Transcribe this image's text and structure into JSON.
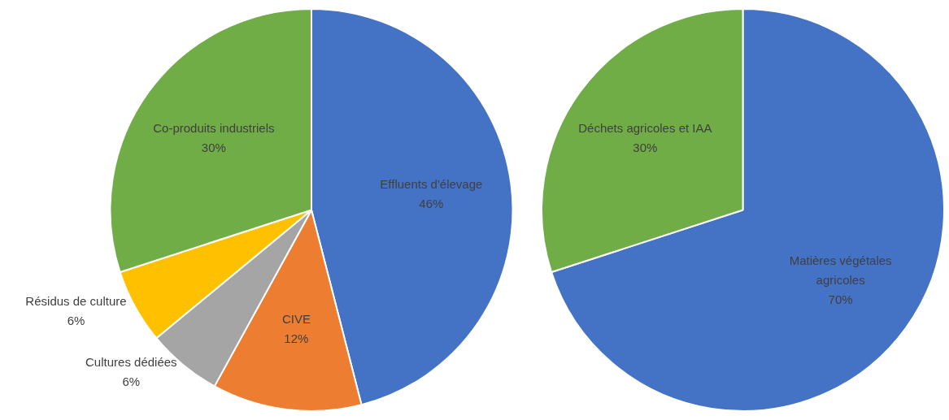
{
  "chart_data": [
    {
      "type": "pie",
      "categories": [
        "Effluents d'élevage",
        "CIVE",
        "Cultures dédiées",
        "Résidus de culture",
        "Co-produits industriels"
      ],
      "values": [
        46,
        12,
        6,
        6,
        30
      ],
      "colors": [
        "#4472c4",
        "#ed7d31",
        "#a5a5a5",
        "#ffc000",
        "#70ad47"
      ],
      "value_labels": [
        "46%",
        "12%",
        "6%",
        "6%",
        "30%"
      ]
    },
    {
      "type": "pie",
      "categories": [
        "Matières végétales agricoles",
        "Déchets agricoles et IAA"
      ],
      "values": [
        70,
        30
      ],
      "colors": [
        "#4472c4",
        "#70ad47"
      ],
      "value_labels": [
        "70%",
        "30%"
      ]
    }
  ]
}
